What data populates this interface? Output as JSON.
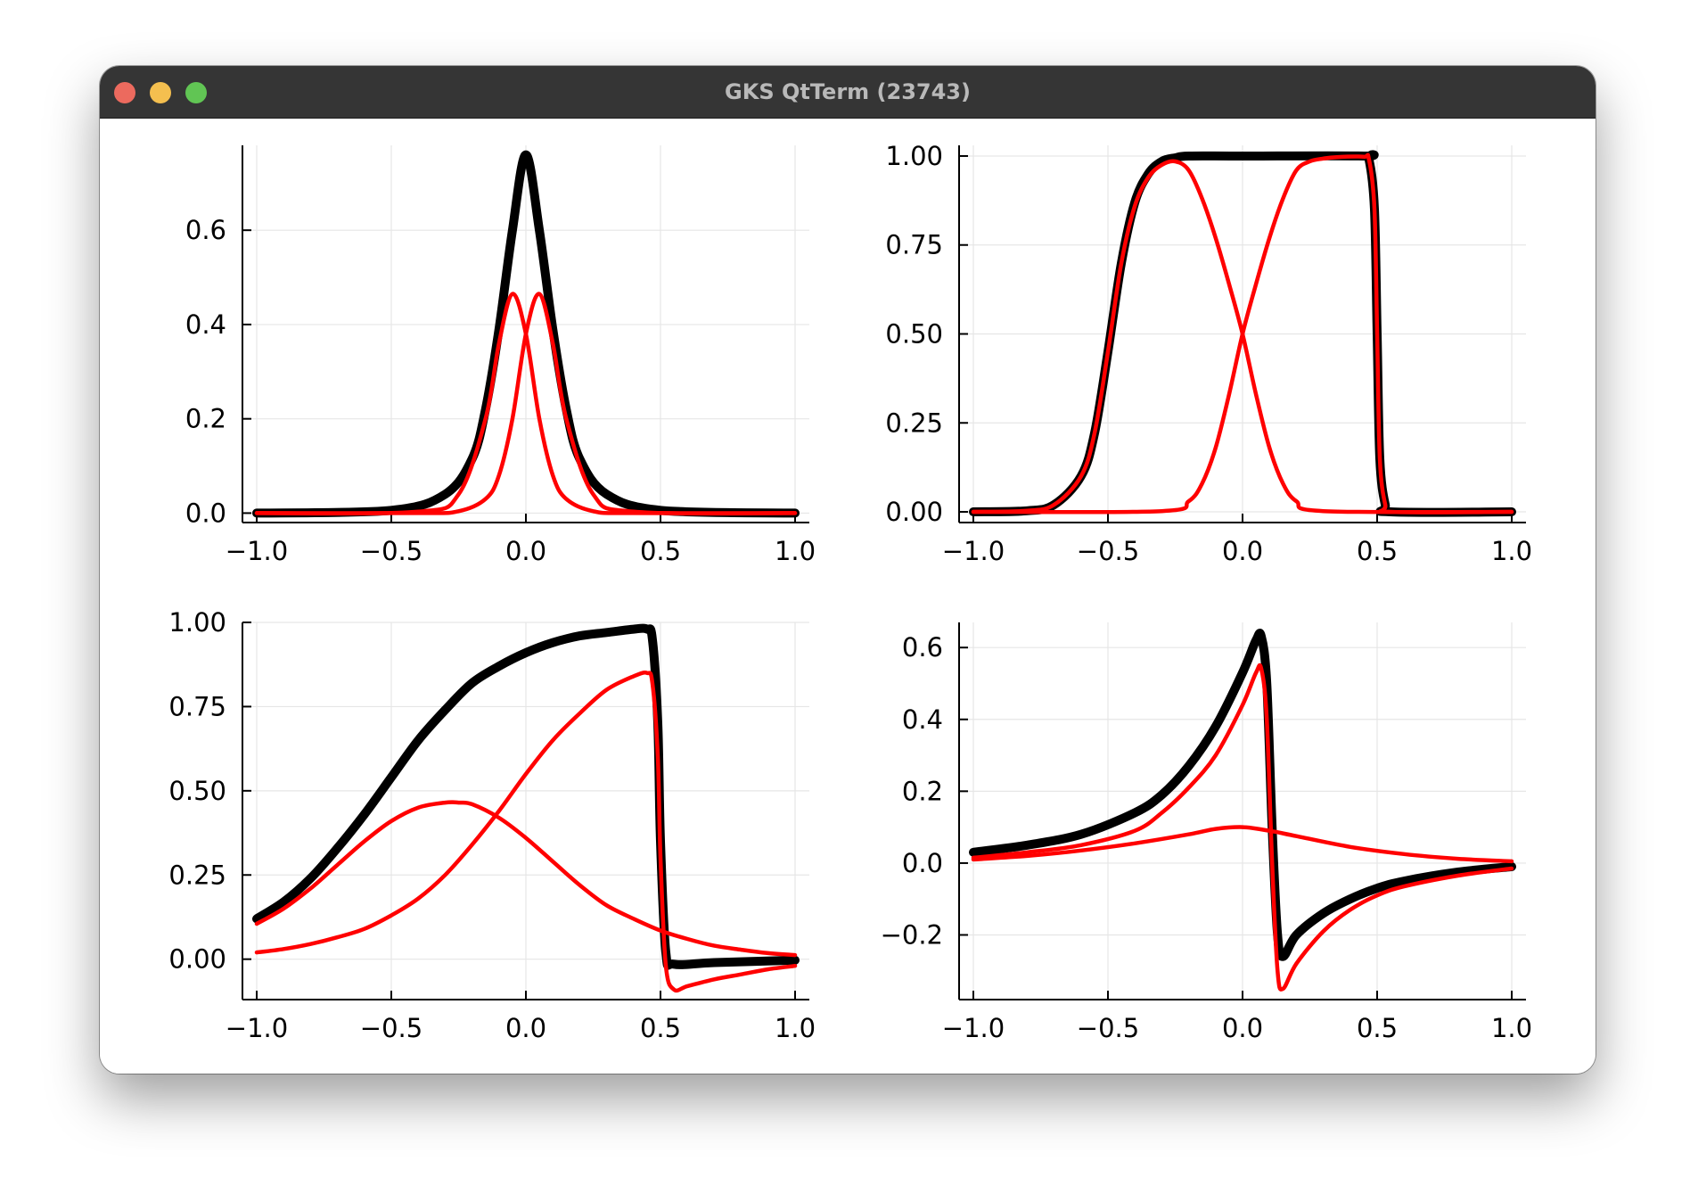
{
  "window": {
    "title": "GKS QtTerm (23743)",
    "buttons": [
      "close",
      "minimize",
      "maximize"
    ]
  },
  "colors": {
    "total": "#000000",
    "component": "#ff0000",
    "titlebar": "#353535",
    "grid": "#e6e6e6"
  },
  "chart_data": [
    {
      "type": "line",
      "xlim": [
        -1.0,
        1.0
      ],
      "ylim": [
        -0.02,
        0.78
      ],
      "x_ticks": [
        "−1.0",
        "−0.5",
        "0.0",
        "0.5",
        "1.0"
      ],
      "x_tick_values": [
        -1.0,
        -0.5,
        0.0,
        0.5,
        1.0
      ],
      "y_ticks": [
        "0.0",
        "0.2",
        "0.4",
        "0.6"
      ],
      "y_tick_values": [
        0.0,
        0.2,
        0.4,
        0.6
      ],
      "grid": true,
      "series": [
        {
          "role": "total",
          "color": "#000000",
          "x": [
            -1.0,
            -0.5,
            -0.3,
            -0.2,
            -0.15,
            -0.1,
            -0.05,
            0.0,
            0.05,
            0.1,
            0.15,
            0.2,
            0.3,
            0.5,
            1.0
          ],
          "y": [
            0.0,
            0.006,
            0.04,
            0.115,
            0.22,
            0.39,
            0.6,
            0.76,
            0.6,
            0.39,
            0.22,
            0.115,
            0.04,
            0.006,
            0.0
          ]
        },
        {
          "role": "component",
          "color": "#ff0000",
          "x": [
            -1.0,
            -0.4,
            -0.25,
            -0.15,
            -0.1,
            -0.05,
            0.0,
            0.05,
            0.1,
            0.15,
            0.25,
            0.4,
            1.0
          ],
          "y": [
            0.0,
            0.003,
            0.04,
            0.2,
            0.36,
            0.465,
            0.38,
            0.2,
            0.08,
            0.03,
            0.004,
            0.0,
            0.0
          ]
        },
        {
          "role": "component",
          "color": "#ff0000",
          "x": [
            -1.0,
            -0.4,
            -0.25,
            -0.15,
            -0.1,
            -0.05,
            0.0,
            0.05,
            0.1,
            0.15,
            0.25,
            0.4,
            1.0
          ],
          "y": [
            0.0,
            0.0,
            0.004,
            0.03,
            0.08,
            0.2,
            0.38,
            0.465,
            0.36,
            0.2,
            0.04,
            0.003,
            0.0
          ]
        }
      ]
    },
    {
      "type": "line",
      "xlim": [
        -1.0,
        1.0
      ],
      "ylim": [
        -0.03,
        1.03
      ],
      "x_ticks": [
        "−1.0",
        "−0.5",
        "0.0",
        "0.5",
        "1.0"
      ],
      "x_tick_values": [
        -1.0,
        -0.5,
        0.0,
        0.5,
        1.0
      ],
      "y_ticks": [
        "0.00",
        "0.25",
        "0.50",
        "0.75",
        "1.00"
      ],
      "y_tick_values": [
        0.0,
        0.25,
        0.5,
        0.75,
        1.0
      ],
      "grid": true,
      "series": [
        {
          "role": "total",
          "color": "#000000",
          "x": [
            -1.0,
            -0.8,
            -0.7,
            -0.6,
            -0.55,
            -0.5,
            -0.45,
            -0.4,
            -0.35,
            -0.3,
            -0.25,
            -0.2,
            0.0,
            0.45,
            0.47,
            0.49,
            0.5,
            0.51,
            0.53,
            0.55,
            1.0
          ],
          "y": [
            0.0,
            0.003,
            0.02,
            0.1,
            0.22,
            0.45,
            0.7,
            0.87,
            0.95,
            0.985,
            0.995,
            1.0,
            1.0,
            1.0,
            0.99,
            0.85,
            0.5,
            0.15,
            0.02,
            0.0,
            0.0
          ]
        },
        {
          "role": "component",
          "color": "#ff0000",
          "x": [
            -1.0,
            -0.8,
            -0.7,
            -0.6,
            -0.55,
            -0.5,
            -0.45,
            -0.4,
            -0.35,
            -0.3,
            -0.25,
            -0.2,
            -0.15,
            -0.1,
            -0.05,
            0.0,
            0.05,
            0.1,
            0.15,
            0.2,
            0.3,
            1.0
          ],
          "y": [
            0.0,
            0.003,
            0.02,
            0.1,
            0.22,
            0.45,
            0.7,
            0.86,
            0.94,
            0.975,
            0.985,
            0.96,
            0.88,
            0.77,
            0.64,
            0.5,
            0.33,
            0.18,
            0.08,
            0.03,
            0.002,
            0.0
          ]
        },
        {
          "role": "component",
          "color": "#ff0000",
          "x": [
            -1.0,
            -0.3,
            -0.2,
            -0.15,
            -0.1,
            -0.05,
            0.0,
            0.05,
            0.1,
            0.15,
            0.2,
            0.25,
            0.3,
            0.35,
            0.45,
            0.47,
            0.49,
            0.5,
            0.51,
            0.53,
            0.55,
            1.0
          ],
          "y": [
            0.0,
            0.002,
            0.03,
            0.08,
            0.18,
            0.33,
            0.5,
            0.64,
            0.77,
            0.88,
            0.96,
            0.985,
            0.993,
            0.997,
            0.998,
            0.99,
            0.85,
            0.5,
            0.15,
            0.02,
            0.0,
            0.0
          ]
        }
      ]
    },
    {
      "type": "line",
      "xlim": [
        -1.0,
        1.0
      ],
      "ylim": [
        -0.12,
        1.0
      ],
      "x_ticks": [
        "−1.0",
        "−0.5",
        "0.0",
        "0.5",
        "1.0"
      ],
      "x_tick_values": [
        -1.0,
        -0.5,
        0.0,
        0.5,
        1.0
      ],
      "y_ticks": [
        "0.00",
        "0.25",
        "0.50",
        "0.75",
        "1.00"
      ],
      "y_tick_values": [
        0.0,
        0.25,
        0.5,
        0.75,
        1.0
      ],
      "grid": true,
      "series": [
        {
          "role": "total",
          "color": "#000000",
          "x": [
            -1.0,
            -0.9,
            -0.8,
            -0.7,
            -0.6,
            -0.5,
            -0.4,
            -0.3,
            -0.2,
            -0.1,
            0.0,
            0.1,
            0.2,
            0.3,
            0.4,
            0.45,
            0.47,
            0.49,
            0.5,
            0.52,
            0.55,
            0.7,
            1.0
          ],
          "y": [
            0.12,
            0.17,
            0.24,
            0.33,
            0.43,
            0.54,
            0.65,
            0.74,
            0.82,
            0.87,
            0.91,
            0.94,
            0.96,
            0.97,
            0.98,
            0.98,
            0.95,
            0.7,
            0.35,
            0.02,
            -0.015,
            -0.01,
            -0.003
          ]
        },
        {
          "role": "component",
          "color": "#ff0000",
          "x": [
            -1.0,
            -0.9,
            -0.8,
            -0.7,
            -0.6,
            -0.5,
            -0.4,
            -0.3,
            -0.25,
            -0.2,
            -0.1,
            0.0,
            0.1,
            0.2,
            0.3,
            0.4,
            0.5,
            0.6,
            0.7,
            0.8,
            0.9,
            1.0
          ],
          "y": [
            0.105,
            0.15,
            0.21,
            0.28,
            0.35,
            0.41,
            0.45,
            0.465,
            0.465,
            0.46,
            0.42,
            0.36,
            0.29,
            0.22,
            0.16,
            0.12,
            0.085,
            0.06,
            0.04,
            0.028,
            0.018,
            0.012
          ]
        },
        {
          "role": "component",
          "color": "#ff0000",
          "x": [
            -1.0,
            -0.9,
            -0.8,
            -0.7,
            -0.6,
            -0.5,
            -0.4,
            -0.3,
            -0.2,
            -0.1,
            0.0,
            0.1,
            0.2,
            0.3,
            0.4,
            0.45,
            0.47,
            0.49,
            0.5,
            0.52,
            0.55,
            0.6,
            0.7,
            0.8,
            0.9,
            1.0
          ],
          "y": [
            0.02,
            0.03,
            0.045,
            0.065,
            0.09,
            0.13,
            0.18,
            0.25,
            0.34,
            0.44,
            0.55,
            0.65,
            0.73,
            0.8,
            0.84,
            0.85,
            0.82,
            0.6,
            0.3,
            -0.02,
            -0.09,
            -0.08,
            -0.06,
            -0.045,
            -0.03,
            -0.02
          ]
        }
      ]
    },
    {
      "type": "line",
      "xlim": [
        -1.0,
        1.0
      ],
      "ylim": [
        -0.38,
        0.67
      ],
      "x_ticks": [
        "−1.0",
        "−0.5",
        "0.0",
        "0.5",
        "1.0"
      ],
      "x_tick_values": [
        -1.0,
        -0.5,
        0.0,
        0.5,
        1.0
      ],
      "y_ticks": [
        "−0.2",
        "0.0",
        "0.2",
        "0.4",
        "0.6"
      ],
      "y_tick_values": [
        -0.2,
        0.0,
        0.2,
        0.4,
        0.6
      ],
      "grid": true,
      "series": [
        {
          "role": "total",
          "color": "#000000",
          "x": [
            -1.0,
            -0.8,
            -0.6,
            -0.4,
            -0.3,
            -0.2,
            -0.1,
            0.0,
            0.05,
            0.07,
            0.09,
            0.11,
            0.13,
            0.15,
            0.2,
            0.3,
            0.4,
            0.5,
            0.6,
            0.8,
            1.0
          ],
          "y": [
            0.03,
            0.05,
            0.08,
            0.14,
            0.19,
            0.27,
            0.38,
            0.53,
            0.62,
            0.63,
            0.5,
            0.1,
            -0.2,
            -0.26,
            -0.2,
            -0.14,
            -0.1,
            -0.07,
            -0.05,
            -0.025,
            -0.01
          ]
        },
        {
          "role": "component",
          "color": "#ff0000",
          "x": [
            -1.0,
            -0.8,
            -0.6,
            -0.4,
            -0.3,
            -0.2,
            -0.1,
            0.0,
            0.05,
            0.07,
            0.09,
            0.11,
            0.13,
            0.15,
            0.2,
            0.3,
            0.4,
            0.5,
            0.6,
            0.8,
            1.0
          ],
          "y": [
            0.015,
            0.03,
            0.05,
            0.09,
            0.14,
            0.21,
            0.3,
            0.44,
            0.53,
            0.54,
            0.4,
            0.0,
            -0.3,
            -0.35,
            -0.28,
            -0.19,
            -0.13,
            -0.09,
            -0.065,
            -0.035,
            -0.015
          ]
        },
        {
          "role": "component",
          "color": "#ff0000",
          "x": [
            -1.0,
            -0.8,
            -0.6,
            -0.4,
            -0.2,
            -0.1,
            0.0,
            0.1,
            0.2,
            0.4,
            0.6,
            0.8,
            1.0
          ],
          "y": [
            0.01,
            0.02,
            0.035,
            0.055,
            0.08,
            0.095,
            0.1,
            0.09,
            0.075,
            0.045,
            0.025,
            0.012,
            0.005
          ]
        }
      ]
    }
  ]
}
